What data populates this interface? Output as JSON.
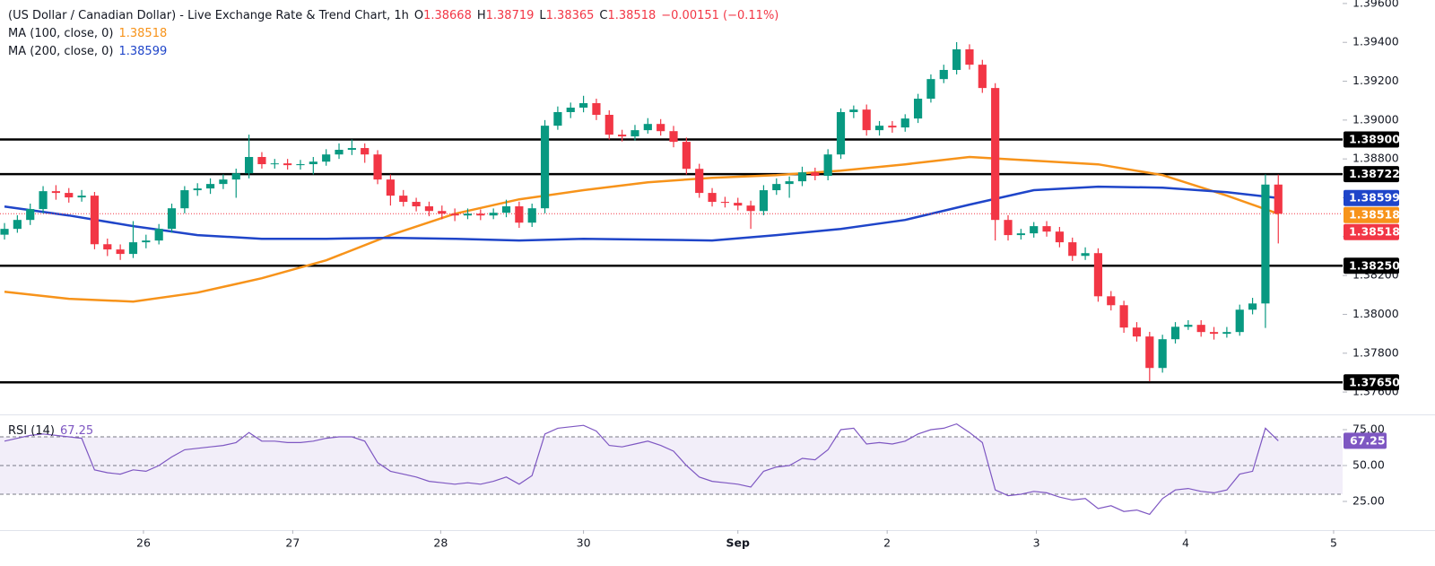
{
  "chart_data": {
    "type": "candlestick",
    "title": "(US Dollar / Canadian Dollar) - Live Exchange Rate & Trend Chart, 1h",
    "ohlc_labels": [
      "O",
      "H",
      "L",
      "C"
    ],
    "change_label": "−0.00151 (−0.11%)",
    "up_color": "#089981",
    "down_color": "#f23645",
    "candles": [
      [
        1.3841,
        1.3847,
        1.38385,
        1.3844
      ],
      [
        1.3844,
        1.3851,
        1.3842,
        1.38486
      ],
      [
        1.38486,
        1.3857,
        1.3846,
        1.38542
      ],
      [
        1.38542,
        1.3866,
        1.3852,
        1.38634
      ],
      [
        1.38634,
        1.38665,
        1.3859,
        1.38625
      ],
      [
        1.38625,
        1.3865,
        1.38575,
        1.38602
      ],
      [
        1.38602,
        1.3864,
        1.3858,
        1.38611
      ],
      [
        1.38611,
        1.3863,
        1.38335,
        1.38361
      ],
      [
        1.38361,
        1.3839,
        1.383,
        1.38334
      ],
      [
        1.38334,
        1.3836,
        1.3828,
        1.38311
      ],
      [
        1.38311,
        1.3848,
        1.3829,
        1.38371
      ],
      [
        1.38371,
        1.3841,
        1.3834,
        1.3838
      ],
      [
        1.3838,
        1.38465,
        1.3836,
        1.3844
      ],
      [
        1.3844,
        1.3857,
        1.3842,
        1.38546
      ],
      [
        1.38546,
        1.3866,
        1.3852,
        1.38639
      ],
      [
        1.38639,
        1.38675,
        1.3861,
        1.38648
      ],
      [
        1.38648,
        1.387,
        1.3862,
        1.38671
      ],
      [
        1.38671,
        1.3872,
        1.38645,
        1.38694
      ],
      [
        1.38694,
        1.3875,
        1.386,
        1.38726
      ],
      [
        1.38726,
        1.38925,
        1.387,
        1.3881
      ],
      [
        1.3881,
        1.38835,
        1.3875,
        1.38773
      ],
      [
        1.38773,
        1.388,
        1.3875,
        1.38777
      ],
      [
        1.38777,
        1.388,
        1.38745,
        1.38768
      ],
      [
        1.38768,
        1.38795,
        1.38745,
        1.38773
      ],
      [
        1.38773,
        1.3881,
        1.3872,
        1.38786
      ],
      [
        1.38786,
        1.3885,
        1.38765,
        1.38823
      ],
      [
        1.38823,
        1.3888,
        1.388,
        1.38847
      ],
      [
        1.38847,
        1.389,
        1.3882,
        1.38856
      ],
      [
        1.38856,
        1.3888,
        1.3878,
        1.38823
      ],
      [
        1.38823,
        1.38845,
        1.3867,
        1.38694
      ],
      [
        1.38694,
        1.3872,
        1.3856,
        1.38611
      ],
      [
        1.38611,
        1.3864,
        1.38555,
        1.38579
      ],
      [
        1.38579,
        1.386,
        1.3853,
        1.38556
      ],
      [
        1.38556,
        1.3858,
        1.38505,
        1.38532
      ],
      [
        1.38532,
        1.3856,
        1.3849,
        1.38518
      ],
      [
        1.38518,
        1.38545,
        1.3848,
        1.38509
      ],
      [
        1.38509,
        1.38545,
        1.3849,
        1.38518
      ],
      [
        1.38518,
        1.3854,
        1.38485,
        1.38509
      ],
      [
        1.38509,
        1.38545,
        1.3849,
        1.38523
      ],
      [
        1.38523,
        1.3859,
        1.385,
        1.38556
      ],
      [
        1.38556,
        1.3858,
        1.38445,
        1.38472
      ],
      [
        1.38472,
        1.3857,
        1.3845,
        1.38546
      ],
      [
        1.38546,
        1.39,
        1.3852,
        1.38971
      ],
      [
        1.38971,
        1.3907,
        1.3895,
        1.39041
      ],
      [
        1.39041,
        1.3909,
        1.3901,
        1.39064
      ],
      [
        1.39064,
        1.39125,
        1.3904,
        1.39087
      ],
      [
        1.39087,
        1.3911,
        1.39,
        1.39027
      ],
      [
        1.39027,
        1.3905,
        1.389,
        1.38925
      ],
      [
        1.38925,
        1.3895,
        1.3889,
        1.38916
      ],
      [
        1.38916,
        1.38975,
        1.38895,
        1.38948
      ],
      [
        1.38948,
        1.3901,
        1.3893,
        1.3898
      ],
      [
        1.3898,
        1.39005,
        1.3892,
        1.38943
      ],
      [
        1.38943,
        1.3897,
        1.3886,
        1.38888
      ],
      [
        1.38888,
        1.3891,
        1.3872,
        1.38749
      ],
      [
        1.38749,
        1.38775,
        1.386,
        1.38625
      ],
      [
        1.38625,
        1.3865,
        1.38555,
        1.38579
      ],
      [
        1.38579,
        1.38605,
        1.3855,
        1.38574
      ],
      [
        1.38574,
        1.386,
        1.38535,
        1.3856
      ],
      [
        1.3856,
        1.38585,
        1.3844,
        1.38532
      ],
      [
        1.38532,
        1.38665,
        1.3851,
        1.38639
      ],
      [
        1.38639,
        1.387,
        1.38615,
        1.38671
      ],
      [
        1.38671,
        1.3871,
        1.386,
        1.38685
      ],
      [
        1.38685,
        1.3876,
        1.3866,
        1.38731
      ],
      [
        1.38731,
        1.38755,
        1.3869,
        1.38713
      ],
      [
        1.38713,
        1.3885,
        1.3869,
        1.38823
      ],
      [
        1.38823,
        1.3906,
        1.388,
        1.39041
      ],
      [
        1.39041,
        1.39075,
        1.3901,
        1.39054
      ],
      [
        1.39054,
        1.3908,
        1.3892,
        1.38948
      ],
      [
        1.38948,
        1.38995,
        1.3892,
        1.38971
      ],
      [
        1.38971,
        1.38995,
        1.38935,
        1.38962
      ],
      [
        1.38962,
        1.3903,
        1.3894,
        1.39008
      ],
      [
        1.39008,
        1.39135,
        1.38985,
        1.3911
      ],
      [
        1.3911,
        1.39235,
        1.3909,
        1.39211
      ],
      [
        1.39211,
        1.39285,
        1.3919,
        1.39258
      ],
      [
        1.39258,
        1.39401,
        1.39235,
        1.39364
      ],
      [
        1.39364,
        1.3939,
        1.3926,
        1.39285
      ],
      [
        1.39285,
        1.3931,
        1.3914,
        1.39165
      ],
      [
        1.39165,
        1.3919,
        1.3838,
        1.38486
      ],
      [
        1.38486,
        1.3851,
        1.3838,
        1.38408
      ],
      [
        1.38408,
        1.3844,
        1.38385,
        1.38417
      ],
      [
        1.38417,
        1.38475,
        1.38395,
        1.38454
      ],
      [
        1.38454,
        1.3848,
        1.384,
        1.38426
      ],
      [
        1.38426,
        1.3845,
        1.38345,
        1.38371
      ],
      [
        1.38371,
        1.38395,
        1.38275,
        1.38301
      ],
      [
        1.38301,
        1.38345,
        1.3828,
        1.38315
      ],
      [
        1.38315,
        1.3834,
        1.38065,
        1.38093
      ],
      [
        1.38093,
        1.3812,
        1.3802,
        1.38047
      ],
      [
        1.38047,
        1.3807,
        1.37905,
        1.37932
      ],
      [
        1.37932,
        1.3796,
        1.3786,
        1.37886
      ],
      [
        1.37886,
        1.3791,
        1.37655,
        1.37724
      ],
      [
        1.37724,
        1.37895,
        1.377,
        1.37872
      ],
      [
        1.37872,
        1.3796,
        1.3785,
        1.37936
      ],
      [
        1.37936,
        1.3797,
        1.3792,
        1.37946
      ],
      [
        1.37946,
        1.3797,
        1.37885,
        1.37909
      ],
      [
        1.37909,
        1.37935,
        1.3787,
        1.379
      ],
      [
        1.379,
        1.37935,
        1.3788,
        1.37909
      ],
      [
        1.37909,
        1.3805,
        1.3789,
        1.38024
      ],
      [
        1.38024,
        1.38085,
        1.38,
        1.38056
      ],
      [
        1.38056,
        1.3872,
        1.3793,
        1.38668
      ],
      [
        1.38668,
        1.38719,
        1.38365,
        1.38518
      ]
    ],
    "xlim": [
      -0.35,
      104
    ],
    "xticks": [
      {
        "value": 10.8,
        "label": "26"
      },
      {
        "value": 22.4,
        "label": "27"
      },
      {
        "value": 33.9,
        "label": "28"
      },
      {
        "value": 45,
        "label": "30"
      },
      {
        "value": 57,
        "label": "Sep"
      },
      {
        "value": 68.6,
        "label": "2"
      },
      {
        "value": 80.2,
        "label": "3"
      },
      {
        "value": 91.8,
        "label": "4"
      },
      {
        "value": 103.3,
        "label": "5"
      }
    ],
    "ylim": [
      1.37485,
      1.39618
    ],
    "yticks": [
      {
        "value": 1.396,
        "label": "1.39600"
      },
      {
        "value": 1.394,
        "label": "1.39400"
      },
      {
        "value": 1.392,
        "label": "1.39200"
      },
      {
        "value": 1.39,
        "label": "1.39000"
      },
      {
        "value": 1.388,
        "label": "1.38800"
      },
      {
        "value": 1.386,
        "label": "1.38600"
      },
      {
        "value": 1.384,
        "label": "1.38400"
      },
      {
        "value": 1.382,
        "label": "1.38200"
      },
      {
        "value": 1.38,
        "label": "1.38000"
      },
      {
        "value": 1.378,
        "label": "1.37800"
      },
      {
        "value": 1.376,
        "label": "1.37600"
      }
    ],
    "grid": false,
    "series": [
      {
        "name": "MA (100, close, 0)",
        "color": "#f7931a",
        "x": [
          0,
          5,
          10,
          15,
          20,
          25,
          30,
          35,
          40,
          45,
          50,
          55,
          60,
          65,
          70,
          75,
          80,
          85,
          90,
          95,
          99
        ],
        "values": [
          1.38116,
          1.3808,
          1.38066,
          1.38112,
          1.38186,
          1.38278,
          1.38408,
          1.38518,
          1.38592,
          1.38639,
          1.3868,
          1.38703,
          1.38717,
          1.3874,
          1.38772,
          1.3881,
          1.38791,
          1.38772,
          1.38717,
          1.38611,
          1.38518
        ]
      },
      {
        "name": "MA (200, close, 0)",
        "color": "#1f45c9",
        "x": [
          0,
          5,
          10,
          15,
          20,
          25,
          30,
          35,
          40,
          45,
          50,
          55,
          60,
          65,
          70,
          75,
          80,
          85,
          90,
          95,
          99
        ],
        "values": [
          1.38555,
          1.38509,
          1.38454,
          1.38408,
          1.38389,
          1.38389,
          1.38394,
          1.38389,
          1.3838,
          1.38389,
          1.38385,
          1.3838,
          1.38408,
          1.3844,
          1.38486,
          1.38565,
          1.38639,
          1.38657,
          1.38652,
          1.38629,
          1.38599
        ]
      }
    ],
    "levels": [
      {
        "value": 1.389,
        "label": "1.38900"
      },
      1.38722,
      {
        "value": 1.3825,
        "label": "1.38250"
      },
      {
        "value": 1.3765,
        "label": "1.37650"
      }
    ],
    "level_color": "#000000",
    "rsi": {
      "name": "RSI (14)",
      "color": "#7e57c2",
      "values": [
        67,
        69,
        71,
        72,
        71,
        70,
        69,
        47,
        45,
        44,
        47,
        46,
        50,
        56,
        61,
        62,
        63,
        64,
        66,
        73,
        67,
        67,
        66,
        66,
        67,
        69,
        70,
        70,
        67,
        52,
        46,
        44,
        42,
        39,
        38,
        37,
        38,
        37,
        39,
        42,
        37,
        43,
        72,
        76,
        77,
        78,
        74,
        64,
        63,
        65,
        67,
        64,
        60,
        50,
        42,
        39,
        38,
        37,
        35,
        46,
        49,
        50,
        55,
        54,
        61,
        75,
        76,
        65,
        66,
        65,
        67,
        72,
        75,
        76,
        79,
        73,
        66,
        33,
        29,
        30,
        32,
        31,
        28,
        26,
        27,
        20,
        22,
        18,
        19,
        16,
        27,
        33,
        34,
        32,
        31,
        33,
        44,
        46,
        76,
        67.25
      ],
      "ylim": [
        5,
        85
      ],
      "yticks": [
        {
          "value": 25,
          "label": "25.00"
        },
        {
          "value": 50,
          "label": "50.00"
        },
        {
          "value": 75,
          "label": "75.00"
        }
      ],
      "levels": [
        70,
        50,
        30
      ]
    }
  }
}
